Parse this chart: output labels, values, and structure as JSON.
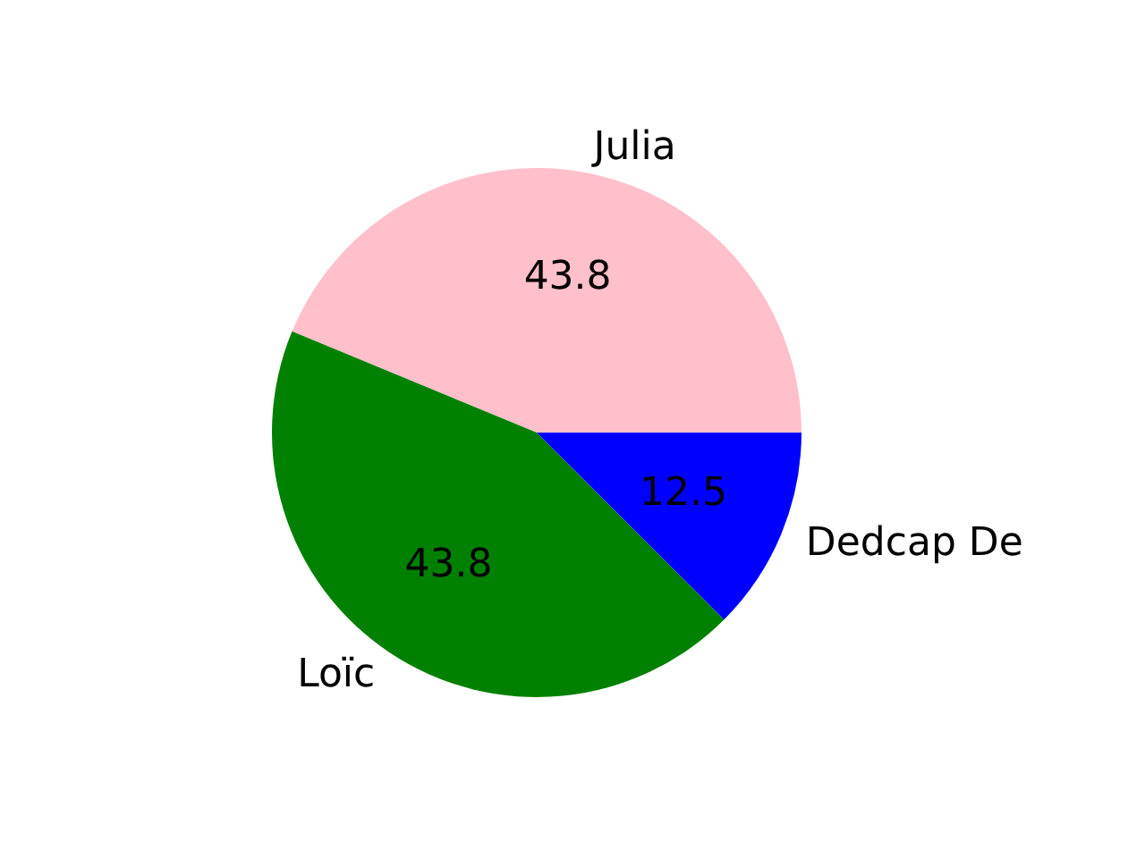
{
  "chart_data": {
    "type": "pie",
    "categories": [
      "Julia",
      "Loïc",
      "Dedcap De"
    ],
    "values": [
      43.8,
      43.8,
      12.5
    ],
    "colors": [
      "#ffc0cb",
      "#008000",
      "#0000ff"
    ],
    "data_labels": true
  }
}
